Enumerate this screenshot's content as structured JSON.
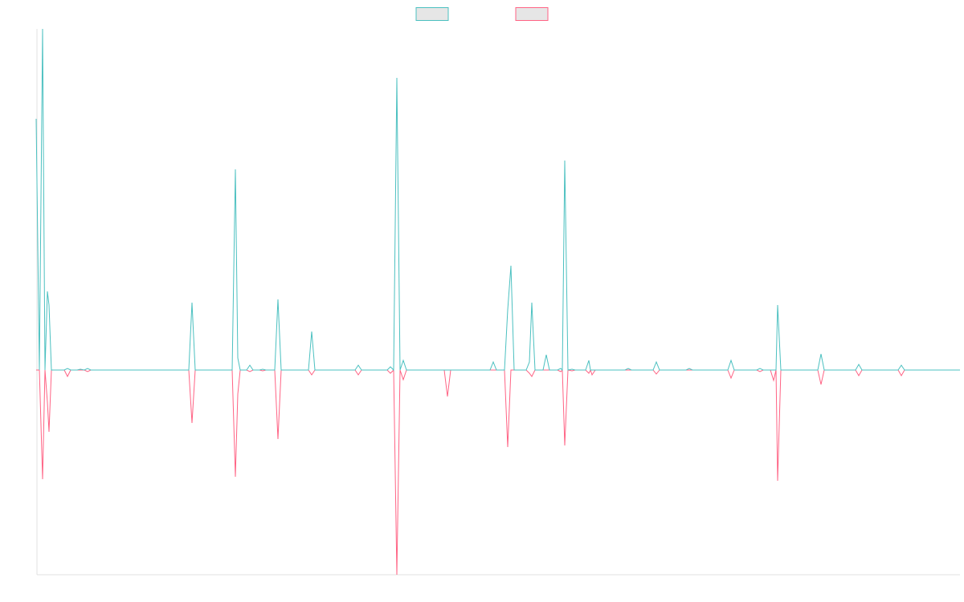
{
  "chart_data": {
    "type": "line",
    "legend": "top",
    "xlim": [
      45,
      1195
    ],
    "ylim": [
      -255,
      425
    ],
    "x": [
      45,
      49,
      53,
      56,
      59,
      61,
      64,
      80,
      84,
      88,
      96,
      100,
      105,
      109,
      113,
      235,
      239,
      243,
      289,
      293,
      296,
      299,
      307,
      311,
      315,
      323,
      327,
      331,
      342,
      346,
      350,
      384,
      388,
      392,
      442,
      446,
      450,
      482,
      486,
      490,
      494,
      498,
      502,
      506,
      553,
      557,
      561,
      610,
      614,
      618,
      628,
      632,
      636,
      640,
      655,
      659,
      662,
      666,
      676,
      680,
      684,
      694,
      698,
      700,
      703,
      707,
      712,
      716,
      729,
      733,
      735,
      737,
      741,
      778,
      782,
      786,
      813,
      817,
      821,
      854,
      858,
      862,
      906,
      910,
      914,
      942,
      946,
      950,
      959,
      963,
      966,
      968,
      972,
      1018,
      1022,
      1026,
      1065,
      1069,
      1073,
      1118,
      1122,
      1126,
      1195
    ],
    "series": [
      {
        "color": "#4bc0c0",
        "values": [
          313,
          0,
          425,
          0,
          98,
          81,
          0,
          0,
          2,
          0,
          0,
          1,
          0,
          2,
          0,
          0,
          84,
          0,
          0,
          250,
          15,
          0,
          0,
          6,
          0,
          0,
          1,
          0,
          0,
          88,
          0,
          0,
          48,
          0,
          0,
          6,
          0,
          0,
          4,
          0,
          364,
          0,
          12,
          0,
          0,
          0,
          0,
          0,
          10,
          0,
          0,
          75,
          130,
          0,
          0,
          10,
          84,
          0,
          0,
          19,
          0,
          0,
          2,
          0,
          261,
          0,
          1,
          0,
          0,
          12,
          0,
          0,
          0,
          0,
          2,
          0,
          0,
          10,
          0,
          0,
          2,
          0,
          0,
          12,
          0,
          0,
          2,
          0,
          0,
          0,
          0,
          81,
          0,
          0,
          20,
          0,
          0,
          7,
          0,
          0,
          6,
          0,
          0
        ]
      },
      {
        "color": "#ff6384",
        "values": [
          0,
          0,
          -136,
          0,
          -40,
          -77,
          0,
          0,
          -8,
          0,
          0,
          0,
          0,
          -2,
          0,
          0,
          -66,
          0,
          0,
          -133,
          -30,
          0,
          0,
          -2,
          0,
          0,
          -1,
          0,
          0,
          -86,
          0,
          0,
          -6,
          0,
          0,
          -6,
          0,
          0,
          -4,
          0,
          -255,
          0,
          -12,
          0,
          0,
          -33,
          0,
          0,
          0,
          0,
          0,
          -96,
          0,
          0,
          0,
          -4,
          -8,
          0,
          0,
          0,
          0,
          0,
          -2,
          0,
          -94,
          0,
          -1,
          0,
          0,
          -4,
          0,
          -6,
          0,
          0,
          0,
          0,
          0,
          -5,
          0,
          0,
          0,
          0,
          0,
          -10,
          0,
          0,
          -2,
          0,
          0,
          -13,
          0,
          -138,
          0,
          0,
          -18,
          0,
          0,
          -7,
          0,
          0,
          -7,
          0,
          0
        ]
      }
    ]
  }
}
